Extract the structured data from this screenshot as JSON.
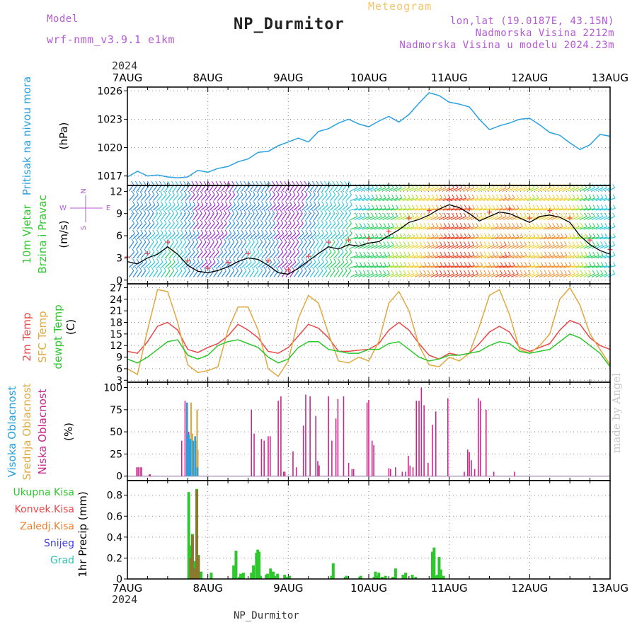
{
  "header": {
    "model_label": "Model",
    "model_name": "wrf-nmm_v3.9.1 e1km",
    "meteogram_label": "Meteogram",
    "station": "NP_Durmitor",
    "lonlat": "lon,lat (19.0187E, 43.15N)",
    "elevation": "Nadmorska Visina 2212m",
    "model_elevation": "Nadmorska Visina u modelu 2024.23m"
  },
  "footer": {
    "station": "NP_Durmitor",
    "year_top": "2024",
    "year_bottom": "2024",
    "credit": "made by Angel"
  },
  "colors": {
    "pressure": "#2aa0e0",
    "temp2m": "#e84848",
    "sfc": "#e0a840",
    "dew": "#2cc82c",
    "low_cloud": "#c8288c",
    "mid_cloud": "#e0a840",
    "high_cloud": "#28a0e0",
    "precip": "#2cc82c",
    "conv": "#e84848",
    "ice": "#f08030",
    "snow": "#4040e0",
    "grad": "#30c0b0"
  },
  "chart_data": [
    {
      "id": "pressure",
      "type": "line",
      "ylabel": [
        "Pritisak na nivou mora",
        "(hPa)"
      ],
      "yticks": [
        1017,
        1020,
        1023,
        1026
      ],
      "ylim": [
        1016,
        1026.4
      ],
      "x_categories": [
        "7AUG",
        "8AUG",
        "9AUG",
        "10AUG",
        "11AUG",
        "12AUG",
        "13AUG"
      ],
      "series": [
        {
          "hours": [
            0,
            3,
            6,
            9,
            12,
            15,
            18,
            21,
            24,
            27,
            30,
            33,
            36,
            39,
            42,
            45,
            48,
            51,
            54,
            57,
            60,
            63,
            66,
            69,
            72,
            75,
            78,
            81,
            84,
            87,
            90,
            93,
            96,
            99,
            102,
            105,
            108,
            111,
            114,
            117,
            120,
            123,
            126,
            129,
            132,
            135,
            138,
            141,
            144
          ],
          "values": [
            1016.9,
            1017.5,
            1017.0,
            1017.1,
            1016.9,
            1016.8,
            1016.9,
            1017.6,
            1017.4,
            1017.8,
            1018.0,
            1018.5,
            1018.8,
            1019.5,
            1019.6,
            1020.2,
            1020.6,
            1021.0,
            1020.6,
            1021.7,
            1022.0,
            1022.6,
            1023.0,
            1022.5,
            1022.2,
            1022.8,
            1023.3,
            1022.7,
            1023.5,
            1024.7,
            1025.8,
            1025.5,
            1024.8,
            1024.6,
            1024.3,
            1023.0,
            1021.9,
            1022.3,
            1022.6,
            1023.0,
            1023.1,
            1022.4,
            1021.6,
            1021.3,
            1020.5,
            1019.8,
            1020.3,
            1021.4,
            1021.2
          ]
        }
      ]
    },
    {
      "id": "wind",
      "type": "line",
      "ylabel": [
        "10m Vjetar",
        "Brzina i Pravac",
        "(m/s)"
      ],
      "compass": [
        "N",
        "W",
        "E",
        "S"
      ],
      "yticks": [
        0,
        3,
        6,
        9,
        12
      ],
      "ylim": [
        -0.5,
        12.8
      ],
      "series": [
        {
          "name": "speed",
          "hours": [
            0,
            3,
            6,
            9,
            12,
            15,
            18,
            21,
            24,
            27,
            30,
            33,
            36,
            39,
            42,
            45,
            48,
            51,
            54,
            57,
            60,
            63,
            66,
            69,
            72,
            75,
            78,
            81,
            84,
            87,
            90,
            93,
            96,
            99,
            102,
            105,
            108,
            111,
            114,
            117,
            120,
            123,
            126,
            129,
            132,
            135,
            138,
            141,
            144
          ],
          "values": [
            2.5,
            2.2,
            3.0,
            3.5,
            4.5,
            3.5,
            2.0,
            1.2,
            1.0,
            1.3,
            1.8,
            2.5,
            3.0,
            2.8,
            2.0,
            1.0,
            0.8,
            1.6,
            2.6,
            3.6,
            4.5,
            4.2,
            4.8,
            4.6,
            5.0,
            5.2,
            6.0,
            6.8,
            7.8,
            8.2,
            8.8,
            9.6,
            10.2,
            9.8,
            9.0,
            8.0,
            8.6,
            9.2,
            9.0,
            8.4,
            7.8,
            8.6,
            8.8,
            8.5,
            7.8,
            6.0,
            4.8,
            4.0,
            3.5
          ]
        }
      ]
    },
    {
      "id": "temperature",
      "type": "line",
      "ylabel": [
        "2m Temp",
        "SFC Temp",
        "dewpt Temp",
        "(C)"
      ],
      "yticks": [
        3,
        6,
        9,
        12,
        15,
        18,
        21,
        24,
        27
      ],
      "ylim": [
        2.5,
        28
      ],
      "series": [
        {
          "name": "2m Temp",
          "hours": [
            0,
            3,
            6,
            9,
            12,
            15,
            18,
            21,
            24,
            27,
            30,
            33,
            36,
            39,
            42,
            45,
            48,
            51,
            54,
            57,
            60,
            63,
            66,
            69,
            72,
            75,
            78,
            81,
            84,
            87,
            90,
            93,
            96,
            99,
            102,
            105,
            108,
            111,
            114,
            117,
            120,
            123,
            126,
            129,
            132,
            135,
            138,
            141,
            144
          ],
          "values": [
            10.5,
            10.0,
            13.0,
            17.0,
            18.0,
            16.0,
            11.0,
            10.2,
            11.5,
            12.5,
            14.5,
            17.5,
            16.0,
            14.0,
            10.5,
            10.0,
            11.5,
            14.5,
            17.5,
            16.5,
            14.0,
            10.5,
            10.5,
            10.8,
            11.0,
            12.5,
            16.0,
            18.0,
            16.0,
            12.5,
            9.5,
            8.5,
            10.0,
            9.5,
            10.0,
            12.5,
            15.5,
            17.0,
            15.5,
            11.5,
            10.5,
            11.5,
            12.5,
            16.0,
            18.5,
            17.5,
            14.0,
            12.0,
            11.0
          ]
        },
        {
          "name": "SFC Temp",
          "hours": [
            0,
            3,
            6,
            9,
            12,
            15,
            18,
            21,
            24,
            27,
            30,
            33,
            36,
            39,
            42,
            45,
            48,
            51,
            54,
            57,
            60,
            63,
            66,
            69,
            72,
            75,
            78,
            81,
            84,
            87,
            90,
            93,
            96,
            99,
            102,
            105,
            108,
            111,
            114,
            117,
            120,
            123,
            126,
            129,
            132,
            135,
            138,
            141,
            144
          ],
          "values": [
            6.0,
            4.5,
            16.0,
            26.5,
            26.0,
            18.0,
            7.0,
            5.0,
            5.5,
            6.5,
            16.0,
            22.0,
            22.0,
            16.0,
            6.0,
            4.0,
            8.0,
            19.0,
            25.0,
            23.0,
            15.0,
            8.0,
            7.5,
            9.0,
            8.0,
            13.0,
            23.0,
            26.0,
            21.0,
            12.0,
            7.0,
            6.5,
            9.0,
            8.0,
            10.0,
            17.0,
            25.0,
            26.5,
            20.0,
            11.0,
            10.0,
            12.0,
            15.0,
            24.0,
            27.0,
            22.5,
            15.0,
            11.0,
            7.0
          ]
        },
        {
          "name": "dewpt Temp",
          "hours": [
            0,
            3,
            6,
            9,
            12,
            15,
            18,
            21,
            24,
            27,
            30,
            33,
            36,
            39,
            42,
            45,
            48,
            51,
            54,
            57,
            60,
            63,
            66,
            69,
            72,
            75,
            78,
            81,
            84,
            87,
            90,
            93,
            96,
            99,
            102,
            105,
            108,
            111,
            114,
            117,
            120,
            123,
            126,
            129,
            132,
            135,
            138,
            141,
            144
          ],
          "values": [
            8.5,
            7.5,
            9.0,
            11.0,
            13.0,
            13.5,
            9.5,
            8.5,
            9.5,
            12.0,
            13.0,
            13.5,
            12.5,
            11.5,
            9.0,
            7.5,
            8.5,
            11.5,
            13.0,
            13.0,
            11.0,
            10.5,
            10.0,
            10.0,
            11.0,
            11.0,
            12.5,
            13.0,
            11.0,
            9.0,
            8.0,
            8.5,
            9.5,
            9.5,
            10.0,
            10.5,
            12.0,
            13.0,
            12.5,
            10.5,
            10.0,
            10.5,
            11.0,
            13.0,
            15.0,
            14.0,
            12.0,
            10.0,
            6.5
          ]
        }
      ]
    },
    {
      "id": "clouds",
      "type": "bar",
      "ylabel": [
        "Visoka Oblacnost",
        "Srednja Oblacnost",
        "Niska Oblacnost",
        "(%)"
      ],
      "yticks": [
        0,
        25,
        50,
        75,
        100
      ],
      "ylim": [
        -5,
        106
      ],
      "series": [
        {
          "name": "Niska Oblacnost",
          "hours": [
            2.8,
            3.2,
            3.8,
            4.2,
            6.5,
            6.8,
            16.2,
            17.2,
            17.8,
            18.3,
            19.2,
            37.0,
            37.8,
            40.0,
            40.8,
            42.0,
            42.6,
            45.0,
            45.8,
            46.6,
            47.0,
            49.4,
            50.4,
            52.5,
            53.2,
            54.5,
            56.2,
            56.8,
            57.2,
            60.0,
            61.0,
            62.2,
            62.8,
            64.5,
            66.0,
            67.0,
            67.5,
            71.5,
            72.0,
            73.0,
            73.5,
            78.0,
            78.5,
            80.0,
            82.0,
            83.0,
            83.8,
            84.3,
            85.2,
            86.2,
            87.0,
            87.7,
            88.5,
            89.7,
            91.0,
            92.0,
            95.6,
            100.5,
            101.5,
            102.0,
            102.6,
            103.6,
            104.7,
            105.3,
            107.0,
            109.3,
            115.5
          ],
          "values": [
            10,
            10,
            10,
            10,
            2,
            2,
            40,
            85,
            35,
            50,
            40,
            75,
            48,
            42,
            40,
            45,
            45,
            85,
            90,
            5,
            5,
            28,
            10,
            57,
            92,
            90,
            68,
            17,
            12,
            90,
            40,
            65,
            87,
            90,
            15,
            8,
            8,
            83,
            86,
            40,
            35,
            9,
            8,
            10,
            5,
            5,
            23,
            12,
            10,
            85,
            85,
            100,
            80,
            15,
            58,
            73,
            88,
            5,
            30,
            27,
            18,
            8,
            88,
            85,
            75,
            5,
            5
          ]
        },
        {
          "name": "Srednja Oblacnost",
          "hours": [
            18.1,
            18.6,
            19.0,
            19.4,
            20.6,
            20.8,
            21.0
          ],
          "values": [
            20,
            36,
            83,
            48,
            40,
            75,
            30
          ]
        },
        {
          "name": "Visoka Oblacnost",
          "hours": [
            17.8,
            18.3,
            18.8,
            19.6,
            20.2,
            20.9
          ],
          "values": [
            83,
            47,
            42,
            40,
            45,
            10
          ]
        }
      ]
    },
    {
      "id": "precip",
      "type": "bar",
      "ylabel": [
        "1hr Precip (mm)"
      ],
      "legend": [
        "Ukupna Kisa",
        "Konvek.Kisa",
        "Zaledj.Kisa",
        "Snijeg",
        "Grad"
      ],
      "yticks": [
        0,
        0.2,
        0.4,
        0.6,
        0.8
      ],
      "ylim": [
        0,
        0.94
      ],
      "x_categories": [
        "7AUG",
        "8AUG",
        "9AUG",
        "10AUG",
        "11AUG",
        "12AUG",
        "13AUG"
      ],
      "series": [
        {
          "name": "Ukupna Kisa",
          "hours": [
            18.3,
            18.9,
            19.4,
            20.1,
            20.7,
            21.2,
            22.0,
            25.0,
            31.7,
            32.4,
            33.4,
            33.8,
            34.6,
            37.0,
            37.6,
            38.5,
            38.9,
            39.3,
            39.7,
            41.4,
            41.8,
            42.7,
            43.5,
            44.0,
            44.8,
            46.9,
            47.4,
            48.4,
            60.9,
            61.4,
            65.0,
            65.4,
            69.3,
            69.6,
            73.6,
            74.0,
            74.4,
            75.0,
            76.0,
            77.0,
            79.2,
            80.0,
            82.2,
            83.0,
            85.0,
            86.0,
            91.0,
            91.5,
            92.0,
            92.5,
            93.0,
            93.5,
            94.3
          ],
          "values": [
            0.83,
            0.32,
            0.43,
            0.17,
            0.86,
            0.23,
            0.07,
            0.06,
            0.13,
            0.27,
            0.02,
            0.05,
            0.06,
            0.06,
            0.13,
            0.25,
            0.28,
            0.26,
            0.03,
            0.04,
            0.05,
            0.1,
            0.07,
            0.03,
            0.05,
            0.04,
            0.02,
            0.03,
            0.03,
            0.15,
            0.02,
            0.03,
            0.02,
            0.03,
            0.02,
            0.07,
            0.03,
            0.06,
            0.02,
            0.03,
            0.02,
            0.1,
            0.04,
            0.06,
            0.04,
            0.02,
            0.26,
            0.3,
            0.03,
            0.04,
            0.21,
            0.09,
            0.03
          ]
        },
        {
          "name": "Konvek.Kisa",
          "hours": [
            18.3,
            18.9,
            19.4,
            20.1,
            20.7,
            21.2
          ],
          "values": [
            0.0,
            0.2,
            0.42,
            0.1,
            0.85,
            0.22
          ]
        }
      ]
    }
  ]
}
